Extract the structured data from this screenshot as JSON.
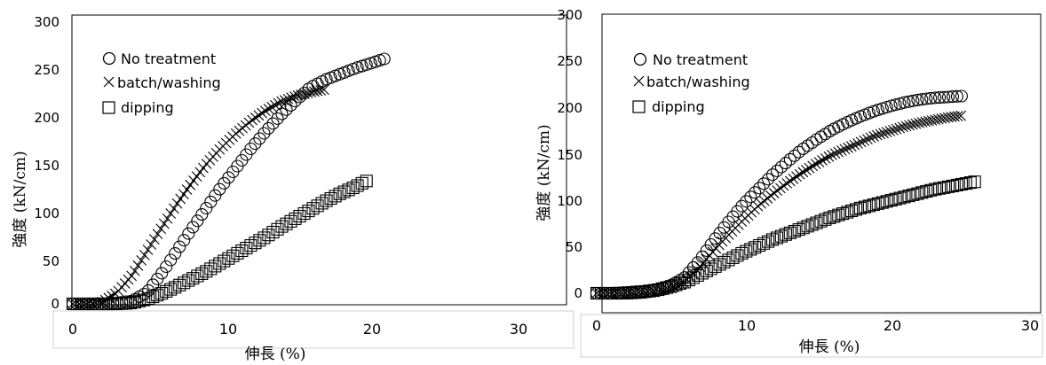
{
  "chart_data": [
    {
      "type": "scatter",
      "title": "",
      "xlabel": "伸長 (%)",
      "ylabel": "強度 (kN/cm)",
      "xlim": [
        0,
        30
      ],
      "ylim": [
        0,
        300
      ],
      "xticks": [
        "0",
        "10",
        "20",
        "30"
      ],
      "yticks": [
        "0",
        "50",
        "100",
        "150",
        "200",
        "250",
        "300"
      ],
      "grid": false,
      "legend_position": "top-left",
      "series": [
        {
          "name": "No treatment",
          "marker": "circle",
          "points": [
            [
              0,
              0
            ],
            [
              1,
              0
            ],
            [
              2,
              0
            ],
            [
              3,
              1
            ],
            [
              4,
              3
            ],
            [
              5,
              12
            ],
            [
              6,
              32
            ],
            [
              7,
              55
            ],
            [
              8,
              78
            ],
            [
              9,
              100
            ],
            [
              10,
              122
            ],
            [
              11,
              142
            ],
            [
              12,
              162
            ],
            [
              13,
              180
            ],
            [
              14,
              197
            ],
            [
              15,
              212
            ],
            [
              16,
              226
            ],
            [
              17,
              234
            ],
            [
              18,
              240
            ],
            [
              19,
              246
            ],
            [
              20,
              251
            ],
            [
              21,
              256
            ]
          ]
        },
        {
          "name": "batch/washing",
          "marker": "x",
          "points": [
            [
              0,
              0
            ],
            [
              1,
              0
            ],
            [
              2,
              2
            ],
            [
              3,
              12
            ],
            [
              4,
              30
            ],
            [
              5,
              55
            ],
            [
              6,
              80
            ],
            [
              7,
              104
            ],
            [
              8,
              126
            ],
            [
              9,
              146
            ],
            [
              10,
              163
            ],
            [
              11,
              178
            ],
            [
              12,
              191
            ],
            [
              13,
              202
            ],
            [
              14,
              211
            ],
            [
              15,
              217
            ],
            [
              16,
              221
            ],
            [
              17,
              224
            ]
          ]
        },
        {
          "name": "dipping",
          "marker": "square",
          "points": [
            [
              0,
              0
            ],
            [
              1,
              0
            ],
            [
              2,
              0
            ],
            [
              3,
              0
            ],
            [
              4,
              1
            ],
            [
              5,
              5
            ],
            [
              6,
              11
            ],
            [
              7,
              18
            ],
            [
              8,
              26
            ],
            [
              9,
              34
            ],
            [
              10,
              43
            ],
            [
              11,
              52
            ],
            [
              12,
              61
            ],
            [
              13,
              70
            ],
            [
              14,
              80
            ],
            [
              15,
              89
            ],
            [
              16,
              98
            ],
            [
              17,
              107
            ],
            [
              18,
              115
            ],
            [
              19,
              122
            ],
            [
              20,
              130
            ]
          ]
        }
      ]
    },
    {
      "type": "scatter",
      "title": "",
      "xlabel": "伸長 (%)",
      "ylabel": "強度 (kN/cm)",
      "xlim": [
        0,
        30
      ],
      "ylim": [
        0,
        300
      ],
      "xticks": [
        "0",
        "10",
        "20",
        "30"
      ],
      "yticks": [
        "0",
        "50",
        "100",
        "150",
        "200",
        "250",
        "300"
      ],
      "grid": false,
      "legend_position": "top-left",
      "series": [
        {
          "name": "No treatment",
          "marker": "circle",
          "points": [
            [
              0,
              0
            ],
            [
              1,
              0
            ],
            [
              2,
              1
            ],
            [
              3,
              2
            ],
            [
              4,
              4
            ],
            [
              5,
              8
            ],
            [
              6,
              17
            ],
            [
              7,
              35
            ],
            [
              8,
              57
            ],
            [
              9,
              77
            ],
            [
              10,
              96
            ],
            [
              11,
              112
            ],
            [
              12,
              128
            ],
            [
              13,
              142
            ],
            [
              14,
              155
            ],
            [
              15,
              166
            ],
            [
              16,
              176
            ],
            [
              17,
              184
            ],
            [
              18,
              191
            ],
            [
              19,
              197
            ],
            [
              20,
              202
            ],
            [
              21,
              206
            ],
            [
              22,
              209
            ],
            [
              23,
              211
            ],
            [
              24,
              212
            ],
            [
              25,
              213
            ]
          ]
        },
        {
          "name": "batch/washing",
          "marker": "x",
          "points": [
            [
              0,
              0
            ],
            [
              1,
              0
            ],
            [
              2,
              0
            ],
            [
              3,
              1
            ],
            [
              4,
              2
            ],
            [
              5,
              5
            ],
            [
              6,
              12
            ],
            [
              7,
              28
            ],
            [
              8,
              46
            ],
            [
              9,
              63
            ],
            [
              10,
              79
            ],
            [
              11,
              94
            ],
            [
              12,
              107
            ],
            [
              13,
              119
            ],
            [
              14,
              130
            ],
            [
              15,
              140
            ],
            [
              16,
              149
            ],
            [
              17,
              156
            ],
            [
              18,
              163
            ],
            [
              19,
              170
            ],
            [
              20,
              175
            ],
            [
              21,
              180
            ],
            [
              22,
              184
            ],
            [
              23,
              187
            ],
            [
              24,
              190
            ],
            [
              25,
              192
            ]
          ]
        },
        {
          "name": "dipping",
          "marker": "square",
          "points": [
            [
              0,
              0
            ],
            [
              1,
              0
            ],
            [
              2,
              0
            ],
            [
              3,
              1
            ],
            [
              4,
              3
            ],
            [
              5,
              7
            ],
            [
              6,
              12
            ],
            [
              7,
              20
            ],
            [
              8,
              28
            ],
            [
              9,
              36
            ],
            [
              10,
              44
            ],
            [
              11,
              51
            ],
            [
              12,
              58
            ],
            [
              13,
              64
            ],
            [
              14,
              70
            ],
            [
              15,
              76
            ],
            [
              16,
              82
            ],
            [
              17,
              87
            ],
            [
              18,
              92
            ],
            [
              19,
              96
            ],
            [
              20,
              100
            ],
            [
              21,
              104
            ],
            [
              22,
              108
            ],
            [
              23,
              112
            ],
            [
              24,
              115
            ],
            [
              25,
              118
            ],
            [
              26,
              121
            ]
          ]
        }
      ]
    }
  ]
}
